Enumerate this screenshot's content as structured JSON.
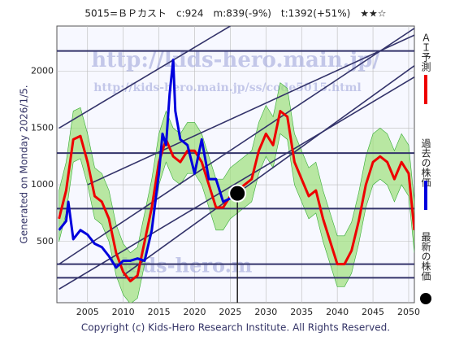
{
  "chart_data": {
    "type": "line",
    "title": "5015=ＢＰカスト　c:924　m:839(-9%)　t:1392(+51%)　★★☆",
    "side_label": "Generated on Monday 2026/1/5.",
    "footer": "Copyright (c) Kids-Hero Research Institute. All Rights Reserved.",
    "watermarks": [
      "http://kids-hero.main.jp/",
      "http://kids-hero.main.jp/ss/code5015.html",
      "kids-hero.m"
    ],
    "xlim": [
      2000.7,
      2050.8
    ],
    "ylim": [
      -40,
      2400
    ],
    "xticks": [
      2005,
      2010,
      2015,
      2020,
      2025,
      2030,
      2035,
      2040,
      2045,
      2050
    ],
    "yticks": [
      500,
      1000,
      1500,
      2000
    ],
    "grid": true,
    "hlines": [
      2180,
      1280,
      790,
      300,
      180
    ],
    "diagonals": [
      [
        2001,
        1500,
        2025,
        2400
      ],
      [
        2001,
        300,
        2050.8,
        2380
      ],
      [
        2001,
        80,
        2050.8,
        1950
      ],
      [
        2010,
        200,
        2050.8,
        2050
      ],
      [
        2005,
        1000,
        2050.8,
        2320
      ]
    ],
    "series": [
      {
        "name": "ＡＩ予測",
        "color": "#ee0000",
        "x": [
          2001,
          2002,
          2003,
          2004,
          2005,
          2006,
          2007,
          2008,
          2009,
          2010,
          2011,
          2012,
          2013,
          2014,
          2015,
          2016,
          2017,
          2018,
          2019,
          2020,
          2021,
          2022,
          2023,
          2024,
          2025,
          2026,
          2027,
          2028,
          2029,
          2030,
          2031,
          2032,
          2033,
          2034,
          2035,
          2036,
          2037,
          2038,
          2039,
          2040,
          2041,
          2042,
          2043,
          2044,
          2045,
          2046,
          2047,
          2048,
          2049,
          2050,
          2050.8
        ],
        "values": [
          700,
          950,
          1400,
          1430,
          1200,
          900,
          850,
          700,
          400,
          230,
          150,
          200,
          500,
          800,
          1200,
          1400,
          1250,
          1200,
          1300,
          1300,
          1200,
          1000,
          800,
          800,
          900,
          950,
          1000,
          1050,
          1300,
          1450,
          1350,
          1650,
          1600,
          1200,
          1050,
          900,
          950,
          700,
          500,
          300,
          300,
          420,
          680,
          1000,
          1200,
          1250,
          1200,
          1050,
          1200,
          1100,
          600
        ]
      },
      {
        "name": "過去の株価",
        "color": "#0000dd",
        "x": [
          2001,
          2002,
          2002.3,
          2003,
          2004,
          2005,
          2006,
          2007,
          2008,
          2009,
          2010,
          2011,
          2012,
          2013,
          2014,
          2015,
          2015.5,
          2016,
          2016.5,
          2017,
          2017.3,
          2018,
          2019,
          2020,
          2021,
          2022,
          2023,
          2024,
          2025,
          2026
        ],
        "values": [
          600,
          680,
          850,
          520,
          600,
          560,
          480,
          450,
          370,
          270,
          330,
          330,
          350,
          330,
          600,
          1100,
          1450,
          1350,
          1800,
          2100,
          1650,
          1400,
          1350,
          1100,
          1400,
          1050,
          1050,
          850,
          880,
          924
        ]
      },
      {
        "name": "最新の株価",
        "color": "#000000",
        "x": [
          2026
        ],
        "values": [
          924
        ]
      }
    ],
    "band": {
      "upper": [
        950,
        1200,
        1650,
        1680,
        1450,
        1150,
        1100,
        950,
        650,
        480,
        400,
        450,
        750,
        1050,
        1450,
        1650,
        1500,
        1450,
        1550,
        1550,
        1450,
        1250,
        1050,
        1050,
        1150,
        1200,
        1250,
        1300,
        1550,
        1700,
        1600,
        1900,
        1850,
        1450,
        1300,
        1150,
        1200,
        950,
        750,
        550,
        550,
        670,
        930,
        1250,
        1450,
        1500,
        1450,
        1300,
        1450,
        1350,
        850
      ],
      "lower": [
        500,
        750,
        1200,
        1230,
        1000,
        700,
        650,
        500,
        200,
        30,
        -50,
        0,
        300,
        600,
        1000,
        1200,
        1050,
        1000,
        1100,
        1100,
        1000,
        800,
        600,
        600,
        700,
        750,
        800,
        850,
        1100,
        1250,
        1150,
        1450,
        1400,
        1000,
        850,
        700,
        750,
        500,
        300,
        100,
        100,
        220,
        480,
        800,
        1000,
        1050,
        1000,
        850,
        1000,
        900,
        400
      ]
    }
  }
}
